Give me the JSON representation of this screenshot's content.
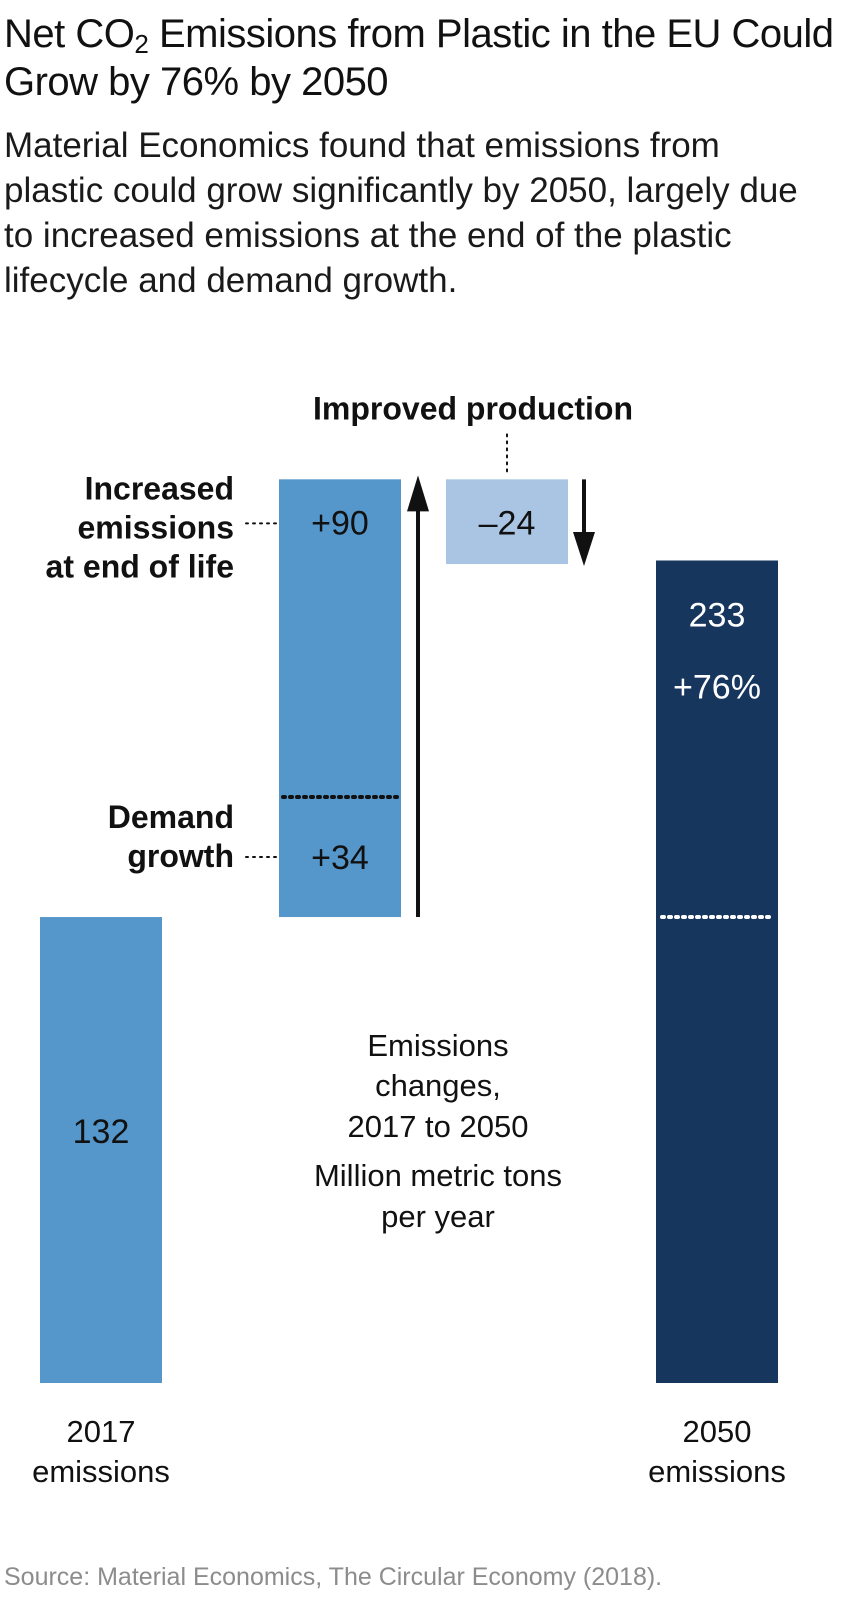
{
  "title_prefix": "Net CO",
  "title_sub": "2",
  "title_suffix": " Emissions from Plastic in the EU Could Grow by 76% by 2050",
  "subtitle": "Material Economics found that emissions from plastic could grow significantly by 2050, largely due to increased emissions at the end of the plastic lifecycle and demand growth.",
  "source": "Source: Material Economics, The Circular Economy (2018).",
  "colors": {
    "base_bar": "#5597cb",
    "increase_bar": "#5597cb",
    "decrease_bar": "#aac4e4",
    "total_bar": "#17365e",
    "text": "#111111",
    "source_text": "#8c8c8c"
  },
  "chart_data": {
    "type": "bar",
    "subtype": "waterfall",
    "unit_label": "Million metric tons per year",
    "center_label": [
      "Emissions",
      "changes,",
      "2017 to 2050"
    ],
    "unit_lines": [
      "Million metric tons",
      "per year"
    ],
    "start": {
      "label": [
        "2017",
        "emissions"
      ],
      "value": 132,
      "value_label": "132"
    },
    "changes": [
      {
        "label": [
          "Demand",
          "growth"
        ],
        "value": 34,
        "value_label": "+34"
      },
      {
        "label": [
          "Increased",
          "emissions",
          "at end of life"
        ],
        "value": 90,
        "value_label": "+90"
      },
      {
        "label": [
          "Improved production"
        ],
        "value": -24,
        "value_label": "–24"
      }
    ],
    "end": {
      "label": [
        "2050",
        "emissions"
      ],
      "value": 233,
      "value_label": "233",
      "change_label": "+76%"
    },
    "ylim": [
      0,
      256
    ],
    "grid": false,
    "legend": "none"
  }
}
